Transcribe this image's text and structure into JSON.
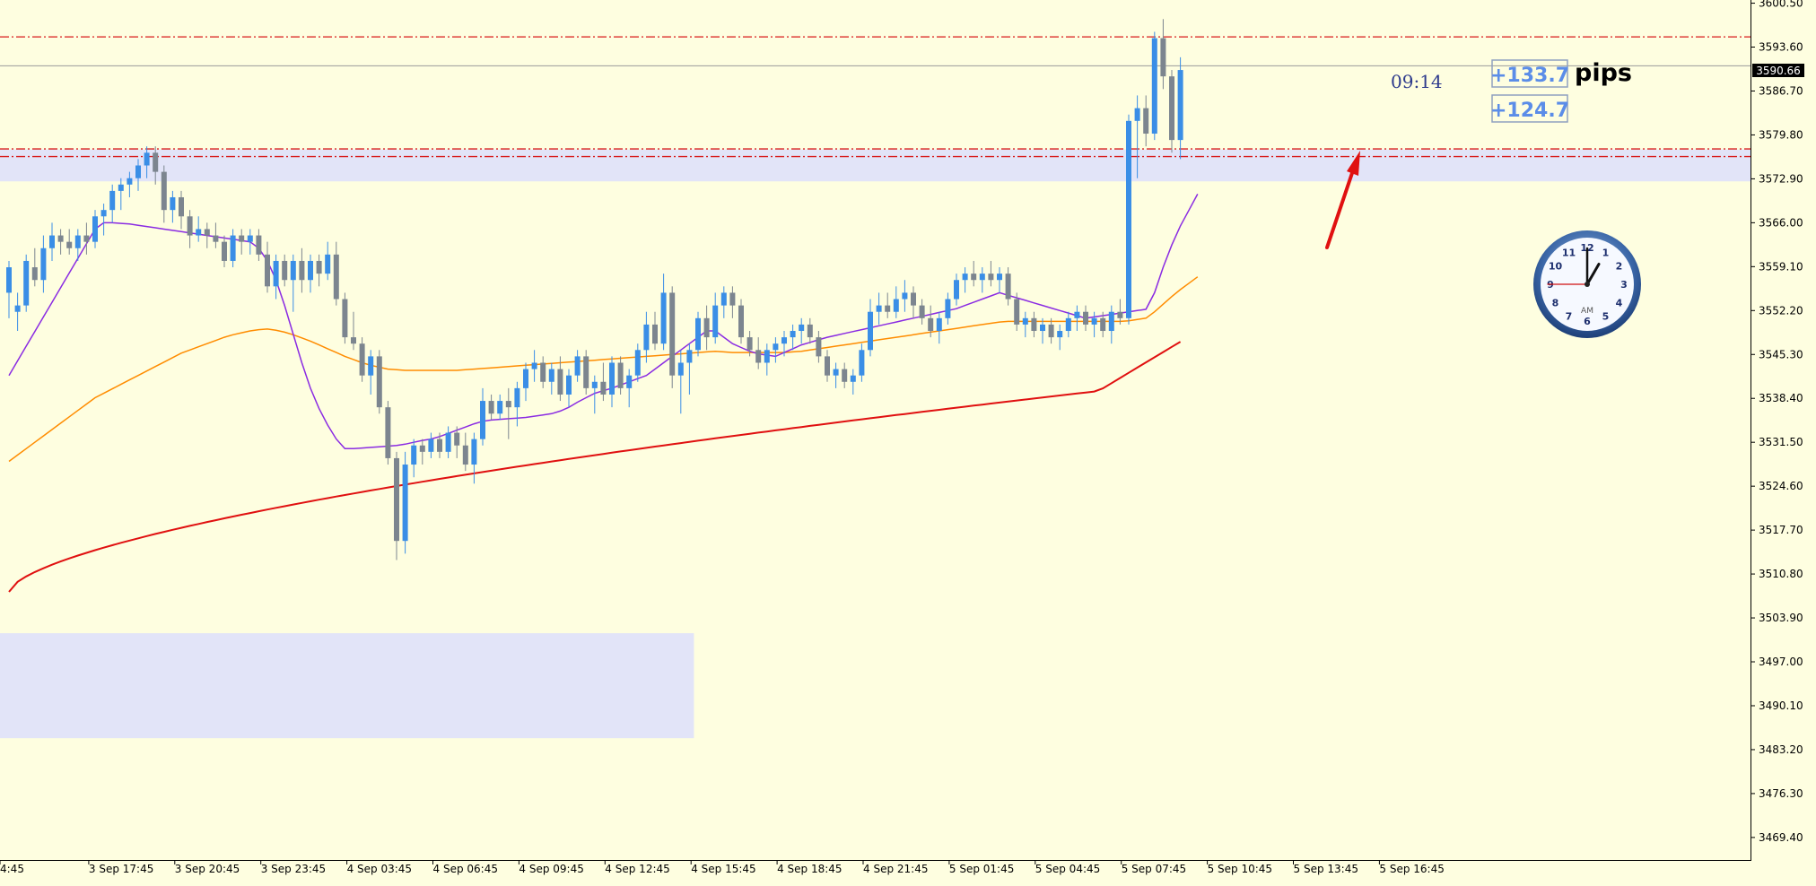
{
  "colors": {
    "background": "#fefee0",
    "bull": "#3a8ee6",
    "bear": "#7c858f",
    "ma_fast": "#8a2be2",
    "ma_mid": "#ff8c00",
    "ma_slow": "#e01010",
    "zone": "#e2e4f8",
    "level_line": "#d81a1a",
    "pips_text": "#5b8de8",
    "arrow": "#e01010",
    "price_tag_bg": "#000000"
  },
  "current_price_label": "3590.66",
  "timer_text": "09:14",
  "pips": {
    "box1": "+133.7",
    "box2": "+124.7",
    "unit": "pips"
  },
  "clock": {
    "label": "AM",
    "numbers": [
      "12",
      "1",
      "2",
      "3",
      "4",
      "5",
      "6",
      "7",
      "8",
      "9",
      "10",
      "11"
    ],
    "hour": 1,
    "minute": 0,
    "second": 45
  },
  "chart_data": {
    "type": "candlestick",
    "ylim": [
      3466.0,
      3601.0
    ],
    "y_ticks": [
      "3600.50",
      "3593.60",
      "3586.70",
      "3579.80",
      "3572.90",
      "3566.00",
      "3559.10",
      "3552.20",
      "3545.30",
      "3538.40",
      "3531.50",
      "3524.60",
      "3517.70",
      "3510.80",
      "3503.90",
      "3497.00",
      "3490.10",
      "3483.20",
      "3476.30",
      "3469.40"
    ],
    "x_labels": [
      "4:45",
      "3 Sep 17:45",
      "3 Sep 20:45",
      "3 Sep 23:45",
      "4 Sep 03:45",
      "4 Sep 06:45",
      "4 Sep 09:45",
      "4 Sep 12:45",
      "4 Sep 15:45",
      "4 Sep 18:45",
      "4 Sep 21:45",
      "5 Sep 01:45",
      "5 Sep 04:45",
      "5 Sep 07:45",
      "5 Sep 10:45",
      "5 Sep 13:45",
      "5 Sep 16:45"
    ],
    "horizontal_levels": [
      3595.2,
      3577.6,
      3576.4
    ],
    "current_price": 3590.66,
    "zones": [
      {
        "y_top": 3577.5,
        "y_bottom": 3572.5,
        "x_start": 0,
        "x_end": "right"
      },
      {
        "y_top": 3501.5,
        "y_bottom": 3485.0,
        "x_start": 0,
        "x_end": 79
      }
    ],
    "ohlc": [
      [
        3555,
        3560,
        3551,
        3559
      ],
      [
        3552,
        3555,
        3549,
        3553
      ],
      [
        3553,
        3561,
        3552,
        3560
      ],
      [
        3559,
        3562,
        3556,
        3557
      ],
      [
        3557,
        3564,
        3555,
        3562
      ],
      [
        3562,
        3566,
        3560,
        3564
      ],
      [
        3564,
        3565,
        3561,
        3563
      ],
      [
        3563,
        3565,
        3561,
        3562
      ],
      [
        3562,
        3565,
        3560,
        3564
      ],
      [
        3564,
        3566,
        3561,
        3563
      ],
      [
        3563,
        3568,
        3562,
        3567
      ],
      [
        3567,
        3569,
        3564,
        3568
      ],
      [
        3568,
        3572,
        3566,
        3571
      ],
      [
        3571,
        3573,
        3568,
        3572
      ],
      [
        3572,
        3574,
        3570,
        3573
      ],
      [
        3573,
        3576,
        3571,
        3575
      ],
      [
        3575,
        3578,
        3573,
        3577
      ],
      [
        3577,
        3578,
        3572,
        3574
      ],
      [
        3574,
        3575,
        3566,
        3568
      ],
      [
        3568,
        3571,
        3566,
        3570
      ],
      [
        3570,
        3571,
        3565,
        3567
      ],
      [
        3567,
        3568,
        3562,
        3564
      ],
      [
        3564,
        3567,
        3563,
        3565
      ],
      [
        3565,
        3566,
        3562,
        3564
      ],
      [
        3564,
        3566,
        3562,
        3563
      ],
      [
        3563,
        3564,
        3559,
        3560
      ],
      [
        3560,
        3565,
        3559,
        3564
      ],
      [
        3564,
        3565,
        3561,
        3563
      ],
      [
        3563,
        3565,
        3561,
        3564
      ],
      [
        3564,
        3565,
        3560,
        3561
      ],
      [
        3561,
        3563,
        3555,
        3556
      ],
      [
        3556,
        3561,
        3554,
        3560
      ],
      [
        3560,
        3561,
        3556,
        3557
      ],
      [
        3557,
        3561,
        3552,
        3560
      ],
      [
        3560,
        3562,
        3555,
        3557
      ],
      [
        3557,
        3561,
        3555,
        3560
      ],
      [
        3560,
        3561,
        3556,
        3558
      ],
      [
        3558,
        3563,
        3557,
        3561
      ],
      [
        3561,
        3563,
        3553,
        3554
      ],
      [
        3554,
        3555,
        3547,
        3548
      ],
      [
        3548,
        3552,
        3546,
        3547
      ],
      [
        3547,
        3548,
        3541,
        3542
      ],
      [
        3542,
        3546,
        3539,
        3545
      ],
      [
        3545,
        3546,
        3536,
        3537
      ],
      [
        3537,
        3538,
        3528,
        3529
      ],
      [
        3529,
        3530,
        3513,
        3516
      ],
      [
        3516,
        3530,
        3514,
        3528
      ],
      [
        3528,
        3532,
        3526,
        3531
      ],
      [
        3531,
        3532,
        3528,
        3530
      ],
      [
        3530,
        3533,
        3529,
        3532
      ],
      [
        3532,
        3533,
        3529,
        3530
      ],
      [
        3530,
        3534,
        3529,
        3533
      ],
      [
        3533,
        3534,
        3529,
        3531
      ],
      [
        3531,
        3533,
        3527,
        3528
      ],
      [
        3528,
        3533,
        3525,
        3532
      ],
      [
        3532,
        3540,
        3531,
        3538
      ],
      [
        3538,
        3539,
        3535,
        3536
      ],
      [
        3536,
        3539,
        3535,
        3538
      ],
      [
        3538,
        3540,
        3532,
        3537
      ],
      [
        3537,
        3541,
        3534,
        3540
      ],
      [
        3540,
        3544,
        3538,
        3543
      ],
      [
        3543,
        3546,
        3541,
        3544
      ],
      [
        3544,
        3545,
        3540,
        3541
      ],
      [
        3541,
        3544,
        3539,
        3543
      ],
      [
        3543,
        3545,
        3538,
        3539
      ],
      [
        3539,
        3543,
        3537,
        3542
      ],
      [
        3542,
        3546,
        3541,
        3545
      ],
      [
        3545,
        3546,
        3539,
        3540
      ],
      [
        3540,
        3542,
        3536,
        3541
      ],
      [
        3541,
        3544,
        3538,
        3539
      ],
      [
        3539,
        3545,
        3537,
        3544
      ],
      [
        3544,
        3545,
        3539,
        3540
      ],
      [
        3540,
        3543,
        3537,
        3542
      ],
      [
        3542,
        3547,
        3541,
        3546
      ],
      [
        3546,
        3552,
        3544,
        3550
      ],
      [
        3550,
        3552,
        3546,
        3547
      ],
      [
        3547,
        3558,
        3546,
        3555
      ],
      [
        3555,
        3556,
        3540,
        3542
      ],
      [
        3542,
        3546,
        3536,
        3544
      ],
      [
        3544,
        3547,
        3539,
        3546
      ],
      [
        3546,
        3552,
        3545,
        3551
      ],
      [
        3551,
        3553,
        3546,
        3548
      ],
      [
        3548,
        3555,
        3547,
        3553
      ],
      [
        3553,
        3556,
        3551,
        3555
      ],
      [
        3555,
        3556,
        3551,
        3553
      ],
      [
        3553,
        3554,
        3547,
        3548
      ],
      [
        3548,
        3549,
        3545,
        3546
      ],
      [
        3546,
        3548,
        3543,
        3544
      ],
      [
        3544,
        3547,
        3542,
        3546
      ],
      [
        3546,
        3548,
        3544,
        3547
      ],
      [
        3547,
        3549,
        3545,
        3548
      ],
      [
        3548,
        3550,
        3546,
        3549
      ],
      [
        3549,
        3551,
        3547,
        3550
      ],
      [
        3550,
        3551,
        3547,
        3548
      ],
      [
        3548,
        3549,
        3544,
        3545
      ],
      [
        3545,
        3546,
        3541,
        3542
      ],
      [
        3542,
        3544,
        3540,
        3543
      ],
      [
        3543,
        3544,
        3540,
        3541
      ],
      [
        3541,
        3543,
        3539,
        3542
      ],
      [
        3542,
        3547,
        3541,
        3546
      ],
      [
        3546,
        3554,
        3545,
        3552
      ],
      [
        3552,
        3555,
        3550,
        3553
      ],
      [
        3553,
        3555,
        3551,
        3552
      ],
      [
        3552,
        3556,
        3551,
        3554
      ],
      [
        3554,
        3557,
        3552,
        3555
      ],
      [
        3555,
        3556,
        3551,
        3553
      ],
      [
        3553,
        3554,
        3550,
        3551
      ],
      [
        3551,
        3553,
        3548,
        3549
      ],
      [
        3549,
        3552,
        3547,
        3551
      ],
      [
        3551,
        3555,
        3550,
        3554
      ],
      [
        3554,
        3558,
        3553,
        3557
      ],
      [
        3557,
        3559,
        3555,
        3558
      ],
      [
        3558,
        3560,
        3556,
        3557
      ],
      [
        3557,
        3559,
        3555,
        3558
      ],
      [
        3558,
        3560,
        3556,
        3557
      ],
      [
        3557,
        3559,
        3555,
        3558
      ],
      [
        3558,
        3559,
        3553,
        3554
      ],
      [
        3554,
        3555,
        3549,
        3550
      ],
      [
        3550,
        3552,
        3548,
        3551
      ],
      [
        3551,
        3552,
        3548,
        3549
      ],
      [
        3549,
        3551,
        3547,
        3550
      ],
      [
        3550,
        3551,
        3547,
        3548
      ],
      [
        3548,
        3550,
        3546,
        3549
      ],
      [
        3549,
        3552,
        3548,
        3551
      ],
      [
        3551,
        3553,
        3549,
        3552
      ],
      [
        3552,
        3553,
        3549,
        3550
      ],
      [
        3550,
        3552,
        3548,
        3551
      ],
      [
        3551,
        3552,
        3548,
        3549
      ],
      [
        3549,
        3553,
        3547,
        3552
      ],
      [
        3552,
        3554,
        3550,
        3551
      ],
      [
        3551,
        3583,
        3550,
        3582
      ],
      [
        3582,
        3586,
        3573,
        3584
      ],
      [
        3584,
        3586,
        3578,
        3580
      ],
      [
        3580,
        3596,
        3579,
        3595
      ],
      [
        3595,
        3598,
        3587,
        3589
      ],
      [
        3589,
        3590,
        3577,
        3579
      ],
      [
        3579,
        3592,
        3576,
        3590
      ]
    ],
    "ma_fast": [
      3542.0,
      3544.3,
      3546.6,
      3548.9,
      3551.2,
      3553.5,
      3555.8,
      3558.1,
      3560.4,
      3562.7,
      3565.0,
      3566.0,
      3566.0,
      3565.9,
      3565.8,
      3565.6,
      3565.4,
      3565.2,
      3565.0,
      3564.8,
      3564.6,
      3564.4,
      3564.2,
      3564.0,
      3563.8,
      3563.6,
      3563.4,
      3563.2,
      3563.0,
      3562.0,
      3560.0,
      3557.0,
      3553.0,
      3548.5,
      3544.0,
      3540.0,
      3536.8,
      3534.2,
      3532.0,
      3530.5,
      3530.5,
      3530.6,
      3530.7,
      3530.8,
      3530.9,
      3531.0,
      3531.2,
      3531.5,
      3531.8,
      3532.0,
      3532.4,
      3532.9,
      3533.4,
      3533.9,
      3534.4,
      3534.8,
      3535.0,
      3535.1,
      3535.2,
      3535.3,
      3535.4,
      3535.6,
      3535.8,
      3536.0,
      3536.4,
      3537.0,
      3537.8,
      3538.5,
      3539.2,
      3539.6,
      3540.0,
      3540.5,
      3541.0,
      3541.5,
      3542.0,
      3543.0,
      3544.0,
      3545.0,
      3546.0,
      3547.0,
      3548.0,
      3549.0,
      3549.0,
      3548.0,
      3547.0,
      3546.4,
      3545.8,
      3545.4,
      3545.2,
      3545.0,
      3545.6,
      3546.2,
      3546.8,
      3547.2,
      3547.6,
      3548.0,
      3548.3,
      3548.6,
      3548.9,
      3549.2,
      3549.5,
      3549.8,
      3550.1,
      3550.4,
      3550.7,
      3551.0,
      3551.3,
      3551.6,
      3551.9,
      3552.2,
      3552.5,
      3553.0,
      3553.5,
      3554.0,
      3554.5,
      3555.0,
      3554.6,
      3554.2,
      3553.8,
      3553.4,
      3553.0,
      3552.6,
      3552.2,
      3551.8,
      3551.4,
      3551.0,
      3551.2,
      3551.4,
      3551.6,
      3551.8,
      3552.0,
      3552.2,
      3552.4,
      3555.0,
      3559.0,
      3562.5,
      3565.5,
      3568.0,
      3570.5
    ],
    "ma_mid": [
      3528.5,
      3529.5,
      3530.5,
      3531.5,
      3532.5,
      3533.5,
      3534.5,
      3535.5,
      3536.5,
      3537.5,
      3538.5,
      3539.2,
      3539.9,
      3540.6,
      3541.3,
      3542.0,
      3542.7,
      3543.4,
      3544.1,
      3544.8,
      3545.5,
      3546.0,
      3546.5,
      3547.0,
      3547.5,
      3548.0,
      3548.4,
      3548.7,
      3549.0,
      3549.2,
      3549.3,
      3549.1,
      3548.8,
      3548.4,
      3547.9,
      3547.4,
      3546.8,
      3546.2,
      3545.6,
      3545.0,
      3544.5,
      3544.0,
      3543.6,
      3543.3,
      3543.0,
      3542.9,
      3542.8,
      3542.8,
      3542.8,
      3542.8,
      3542.8,
      3542.8,
      3542.8,
      3542.9,
      3543.0,
      3543.1,
      3543.2,
      3543.3,
      3543.4,
      3543.5,
      3543.6,
      3543.7,
      3543.8,
      3543.9,
      3544.0,
      3544.1,
      3544.2,
      3544.3,
      3544.4,
      3544.5,
      3544.6,
      3544.7,
      3544.8,
      3544.9,
      3545.0,
      3545.1,
      3545.2,
      3545.3,
      3545.4,
      3545.5,
      3545.6,
      3545.7,
      3545.8,
      3545.7,
      3545.6,
      3545.6,
      3545.6,
      3545.6,
      3545.6,
      3545.6,
      3545.6,
      3545.7,
      3545.8,
      3546.0,
      3546.2,
      3546.4,
      3546.6,
      3546.8,
      3547.0,
      3547.2,
      3547.4,
      3547.6,
      3547.8,
      3548.0,
      3548.2,
      3548.4,
      3548.6,
      3548.8,
      3549.0,
      3549.2,
      3549.4,
      3549.6,
      3549.8,
      3550.0,
      3550.2,
      3550.4,
      3550.5,
      3550.5,
      3550.5,
      3550.5,
      3550.5,
      3550.5,
      3550.5,
      3550.5,
      3550.5,
      3550.5,
      3550.5,
      3550.5,
      3550.5,
      3550.5,
      3550.6,
      3550.8,
      3551.0,
      3552.0,
      3553.2,
      3554.4,
      3555.5,
      3556.5,
      3557.5
    ]
  }
}
